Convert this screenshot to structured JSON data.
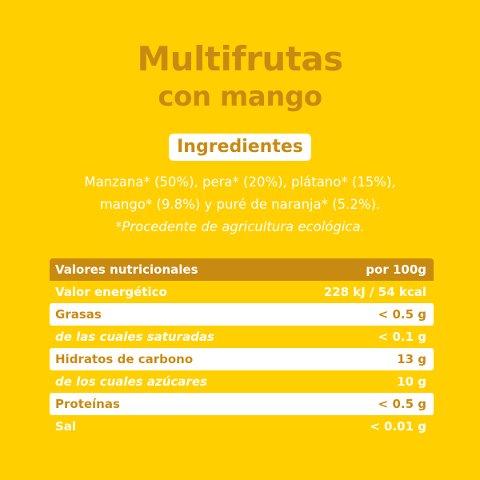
{
  "title": {
    "line1": "Multifrutas",
    "line2": "con mango"
  },
  "ingredients": {
    "heading": "Ingredientes",
    "line1": "Manzana* (50%), pera* (20%), plátano* (15%),",
    "line2": "mango* (9.8%) y puré de naranja* (5.2%).",
    "note": "*Procedente de agricultura ecológica."
  },
  "nutrition": {
    "header": {
      "label": "Valores nutricionales",
      "value": "por 100g"
    },
    "rows": [
      {
        "label": "Valor energético",
        "value": "228 kJ / 54 kcal"
      },
      {
        "label": "Grasas",
        "value": "< 0.5 g"
      },
      {
        "label": "de las cuales saturadas",
        "value": "< 0.1 g"
      },
      {
        "label": "Hidratos de carbono",
        "value": "13 g"
      },
      {
        "label": "de los cuales azúcares",
        "value": "10 g"
      },
      {
        "label": "Proteínas",
        "value": "< 0.5 g"
      },
      {
        "label": "Sal",
        "value": "< 0.01 g"
      }
    ]
  },
  "colors": {
    "background": "#FFCF00",
    "accent": "#C98A12",
    "text_light": "#FFFFFF"
  }
}
